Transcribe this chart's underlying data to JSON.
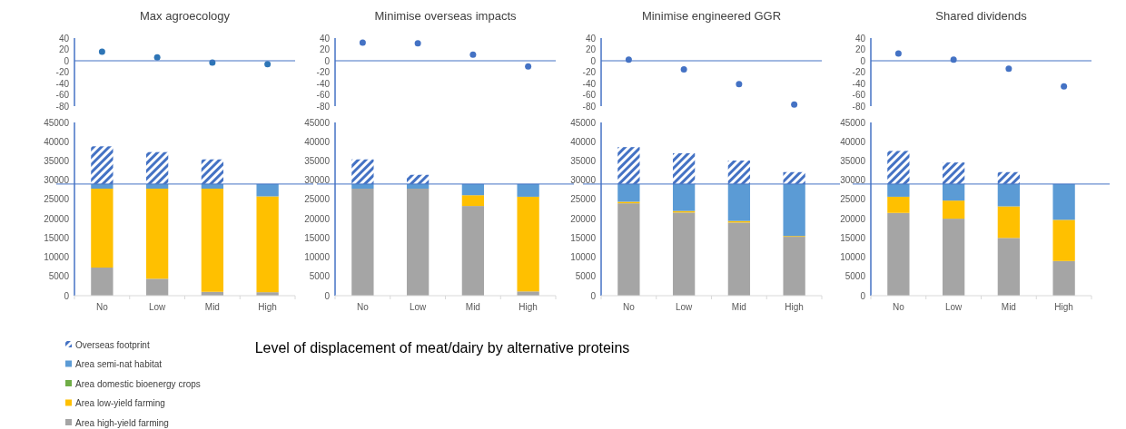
{
  "chart_data": [
    {
      "type": "scatter",
      "title": "Max agroecology",
      "categories": [
        null,
        null,
        null,
        null
      ],
      "series": [
        {
          "color": "#2e75b6",
          "values": [
            16,
            6,
            -3,
            -6
          ]
        }
      ],
      "ylim": [
        -80,
        40
      ],
      "yticks": [
        -80,
        -60,
        -40,
        -20,
        0,
        20,
        40
      ],
      "tick_labels": "y",
      "marker": "circle",
      "ref_lines": [
        {
          "axis": "y",
          "value": 0,
          "color": "#4472c4"
        }
      ]
    },
    {
      "type": "bar",
      "stacked": true,
      "categories": [
        "No",
        "Low",
        "Mid",
        "High"
      ],
      "xlabel": "Level of displacement of meat/dairy by alternative proteins",
      "legend": "bottom left",
      "ylim": [
        0,
        45000
      ],
      "yticks": [
        0,
        5000,
        10000,
        15000,
        20000,
        25000,
        30000,
        35000,
        40000,
        45000
      ],
      "ref_lines": [
        {
          "axis": "y",
          "value": 29000,
          "color": "#4472c4"
        }
      ],
      "series": [
        {
          "name": "Area high-yield farming",
          "color": "#a5a5a5",
          "values": [
            7300,
            4400,
            1000,
            900
          ]
        },
        {
          "name": "Area low-yield farming",
          "color": "#ffc000",
          "values": [
            20500,
            23400,
            26800,
            24900
          ]
        },
        {
          "name": "Area domestic bioenergy crops",
          "color": "#70ad47",
          "values": [
            0,
            0,
            0,
            0
          ]
        },
        {
          "name": "Area semi-nat habitat",
          "color": "#5b9bd5",
          "values": [
            1200,
            1200,
            1200,
            3200
          ]
        },
        {
          "name": "Overseas footprint",
          "color": "#4472c4",
          "values": [
            9800,
            8300,
            6400,
            0
          ]
        }
      ]
    },
    {
      "type": "scatter",
      "title": "Minimise overseas impacts",
      "categories": [
        null,
        null,
        null,
        null
      ],
      "series": [
        {
          "color": "#4472c4",
          "values": [
            32,
            31,
            11,
            -10
          ]
        }
      ],
      "ylim": [
        -80,
        40
      ],
      "yticks": [
        -80,
        -60,
        -40,
        -20,
        0,
        20,
        40
      ],
      "tick_labels": "y",
      "marker": "circle",
      "ref_lines": [
        {
          "axis": "y",
          "value": 0,
          "color": "#4472c4"
        }
      ]
    },
    {
      "type": "bar",
      "stacked": true,
      "categories": [
        "No",
        "Low",
        "Mid",
        "High"
      ],
      "ylim": [
        0,
        45000
      ],
      "yticks": [
        0,
        5000,
        10000,
        15000,
        20000,
        25000,
        30000,
        35000,
        40000,
        45000
      ],
      "ref_lines": [
        {
          "axis": "y",
          "value": 29000,
          "color": "#4472c4"
        }
      ],
      "series": [
        {
          "color": "#a5a5a5",
          "values": [
            27800,
            27800,
            23300,
            1100
          ]
        },
        {
          "color": "#ffc000",
          "values": [
            0,
            0,
            2800,
            24600
          ]
        },
        {
          "color": "#70ad47",
          "values": [
            0,
            0,
            0,
            0
          ]
        },
        {
          "color": "#5b9bd5",
          "values": [
            1200,
            1200,
            2900,
            3300
          ]
        },
        {
          "color": "#4472c4",
          "values": [
            6400,
            2400,
            0,
            0
          ]
        }
      ]
    },
    {
      "type": "scatter",
      "title": "Minimise engineered GGR",
      "categories": [
        null,
        null,
        null,
        null
      ],
      "series": [
        {
          "color": "#4472c4",
          "values": [
            2,
            -15,
            -41,
            -77
          ]
        }
      ],
      "ylim": [
        -80,
        40
      ],
      "yticks": [
        -80,
        -60,
        -40,
        -20,
        0,
        20,
        40
      ],
      "tick_labels": "y",
      "marker": "circle",
      "ref_lines": [
        {
          "axis": "y",
          "value": 0,
          "color": "#4472c4"
        }
      ]
    },
    {
      "type": "bar",
      "stacked": true,
      "categories": [
        "No",
        "Low",
        "Mid",
        "High"
      ],
      "ylim": [
        0,
        45000
      ],
      "yticks": [
        0,
        5000,
        10000,
        15000,
        20000,
        25000,
        30000,
        35000,
        40000,
        45000
      ],
      "ref_lines": [
        {
          "axis": "y",
          "value": 29000,
          "color": "#4472c4"
        }
      ],
      "series": [
        {
          "color": "#a5a5a5",
          "values": [
            24000,
            21600,
            19000,
            15300
          ]
        },
        {
          "color": "#ffc000",
          "values": [
            400,
            400,
            400,
            200
          ]
        },
        {
          "color": "#70ad47",
          "values": [
            0,
            0,
            0,
            0
          ]
        },
        {
          "color": "#5b9bd5",
          "values": [
            4600,
            7000,
            9600,
            13500
          ]
        },
        {
          "color": "#4472c4",
          "values": [
            9600,
            8000,
            6100,
            3100
          ]
        }
      ]
    },
    {
      "type": "scatter",
      "title": "Shared dividends",
      "categories": [
        null,
        null,
        null,
        null
      ],
      "series": [
        {
          "color": "#4472c4",
          "values": [
            13,
            2,
            -14,
            -45
          ]
        }
      ],
      "ylim": [
        -80,
        40
      ],
      "yticks": [
        -80,
        -60,
        -40,
        -20,
        0,
        20,
        40
      ],
      "tick_labels": "y",
      "marker": "circle",
      "ref_lines": [
        {
          "axis": "y",
          "value": 0,
          "color": "#4472c4"
        }
      ]
    },
    {
      "type": "bar",
      "stacked": true,
      "categories": [
        "No",
        "Low",
        "Mid",
        "High"
      ],
      "ylim": [
        0,
        45000
      ],
      "yticks": [
        0,
        5000,
        10000,
        15000,
        20000,
        25000,
        30000,
        35000,
        40000,
        45000
      ],
      "ref_lines": [
        {
          "axis": "y",
          "value": 29000,
          "color": "#4472c4"
        }
      ],
      "series": [
        {
          "color": "#a5a5a5",
          "values": [
            21500,
            20000,
            15000,
            9000
          ]
        },
        {
          "color": "#ffc000",
          "values": [
            4200,
            4700,
            8200,
            10700
          ]
        },
        {
          "color": "#70ad47",
          "values": [
            0,
            0,
            0,
            0
          ]
        },
        {
          "color": "#5b9bd5",
          "values": [
            3300,
            4300,
            5800,
            9300
          ]
        },
        {
          "color": "#4472c4",
          "values": [
            8600,
            5600,
            3100,
            0
          ]
        }
      ]
    }
  ]
}
